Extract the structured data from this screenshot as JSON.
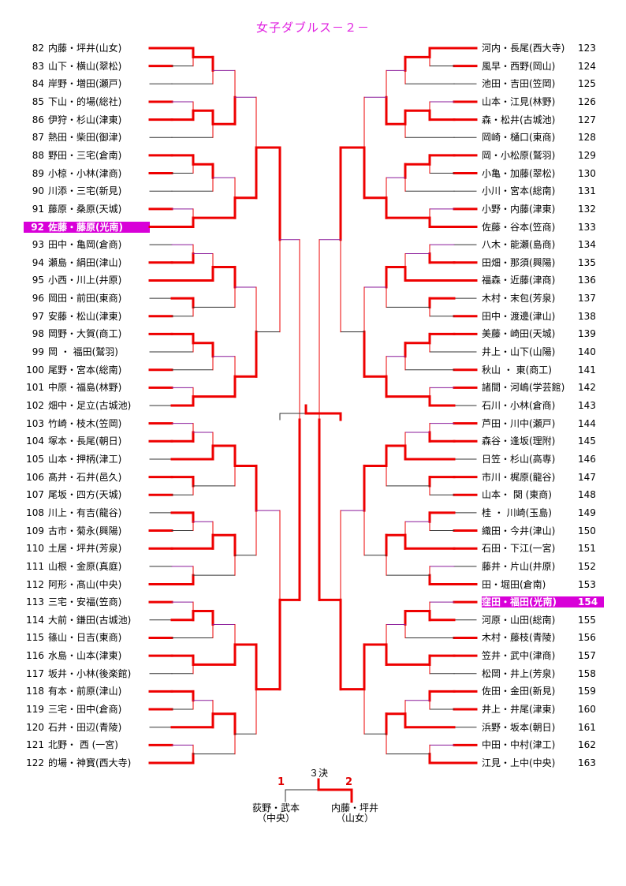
{
  "title": "女子ダブルス－２－",
  "colors": {
    "win": "#ee0000",
    "lose": "#333333",
    "lose_alt": "#8a1a9a",
    "highlight": "#d800d8",
    "title": "#e020e0"
  },
  "left_entries": [
    {
      "num": "82",
      "name": "内藤・坪井(山女)"
    },
    {
      "num": "83",
      "name": "山下・横山(翠松)"
    },
    {
      "num": "84",
      "name": "岸野・増田(瀬戸)"
    },
    {
      "num": "85",
      "name": "下山・的場(総社)"
    },
    {
      "num": "86",
      "name": "伊狩・杉山(津東)"
    },
    {
      "num": "87",
      "name": "熱田・柴田(御津)"
    },
    {
      "num": "88",
      "name": "野田・三宅(倉南)"
    },
    {
      "num": "89",
      "name": "小椋・小林(津商)"
    },
    {
      "num": "90",
      "name": "川添・三宅(新見)"
    },
    {
      "num": "91",
      "name": "藤原・桑原(天城)"
    },
    {
      "num": "92",
      "name": "佐藤・藤原(光南)",
      "hl": true
    },
    {
      "num": "93",
      "name": "田中・亀岡(倉商)"
    },
    {
      "num": "94",
      "name": "瀬島・絹田(津山)"
    },
    {
      "num": "95",
      "name": "小西・川上(井原)"
    },
    {
      "num": "96",
      "name": "岡田・前田(東商)"
    },
    {
      "num": "97",
      "name": "安藤・松山(津東)"
    },
    {
      "num": "98",
      "name": "岡野・大賀(商工)"
    },
    {
      "num": "99",
      "name": "岡 ・ 福田(鷲羽)"
    },
    {
      "num": "100",
      "name": "尾野・宮本(総南)"
    },
    {
      "num": "101",
      "name": "中原・福島(林野)"
    },
    {
      "num": "102",
      "name": "畑中・足立(古城池)"
    },
    {
      "num": "103",
      "name": "竹崎・枝木(笠岡)"
    },
    {
      "num": "104",
      "name": "塚本・長尾(朝日)"
    },
    {
      "num": "105",
      "name": "山本・押柄(津工)"
    },
    {
      "num": "106",
      "name": "髙井・石井(邑久)"
    },
    {
      "num": "107",
      "name": "尾坂・四方(天城)"
    },
    {
      "num": "108",
      "name": "川上・有吉(龍谷)"
    },
    {
      "num": "109",
      "name": "古市・菊永(興陽)"
    },
    {
      "num": "110",
      "name": "土居・坪井(芳泉)"
    },
    {
      "num": "111",
      "name": "山根・金原(真庭)"
    },
    {
      "num": "112",
      "name": "阿形・髙山(中央)"
    },
    {
      "num": "113",
      "name": "三宅・安福(笠商)"
    },
    {
      "num": "114",
      "name": "大前・鎌田(古城池)"
    },
    {
      "num": "115",
      "name": "篠山・日吉(東商)"
    },
    {
      "num": "116",
      "name": "水島・山本(津東)"
    },
    {
      "num": "117",
      "name": "坂井・小林(後楽館)"
    },
    {
      "num": "118",
      "name": "有本・前原(津山)"
    },
    {
      "num": "119",
      "name": "三宅・田中(倉商)"
    },
    {
      "num": "120",
      "name": "石井・田辺(青陵)"
    },
    {
      "num": "121",
      "name": "北野・ 西 (一宮)"
    },
    {
      "num": "122",
      "name": "的場・神寳(西大寺)"
    }
  ],
  "right_entries": [
    {
      "num": "123",
      "name": "河内・長尾(西大寺)"
    },
    {
      "num": "124",
      "name": "風早・西野(岡山)"
    },
    {
      "num": "125",
      "name": "池田・吉田(笠岡)"
    },
    {
      "num": "126",
      "name": "山本・江見(林野)"
    },
    {
      "num": "127",
      "name": "森・松井(古城池)"
    },
    {
      "num": "128",
      "name": "岡崎・樋口(東商)"
    },
    {
      "num": "129",
      "name": "岡・小松原(鷲羽)"
    },
    {
      "num": "130",
      "name": "小亀・加藤(翠松)"
    },
    {
      "num": "131",
      "name": "小川・宮本(総南)"
    },
    {
      "num": "132",
      "name": "小野・内藤(津東)"
    },
    {
      "num": "133",
      "name": "佐藤・谷本(笠商)"
    },
    {
      "num": "134",
      "name": "八木・能瀬(島商)"
    },
    {
      "num": "135",
      "name": "田畑・那須(興陽)"
    },
    {
      "num": "136",
      "name": "福森・近藤(津商)"
    },
    {
      "num": "137",
      "name": "木村・末包(芳泉)"
    },
    {
      "num": "138",
      "name": "田中・渡邊(津山)"
    },
    {
      "num": "139",
      "name": "美藤・崎田(天城)"
    },
    {
      "num": "140",
      "name": "井上・山下(山陽)"
    },
    {
      "num": "141",
      "name": "秋山 ・ 東(商工)"
    },
    {
      "num": "142",
      "name": "諸間・河嶋(学芸館)"
    },
    {
      "num": "143",
      "name": "石川・小林(倉商)"
    },
    {
      "num": "144",
      "name": "芦田・川中(瀬戸)"
    },
    {
      "num": "145",
      "name": "森谷・逢坂(理附)"
    },
    {
      "num": "146",
      "name": "日笠・杉山(高専)"
    },
    {
      "num": "147",
      "name": "市川・梶原(龍谷)"
    },
    {
      "num": "148",
      "name": "山本・ 関 (東商)"
    },
    {
      "num": "149",
      "name": "桂 ・ 川崎(玉島)"
    },
    {
      "num": "150",
      "name": "織田・今井(津山)"
    },
    {
      "num": "151",
      "name": "石田・下江(一宮)"
    },
    {
      "num": "152",
      "name": "藤井・片山(井原)"
    },
    {
      "num": "153",
      "name": "田・堀田(倉南)"
    },
    {
      "num": "154",
      "name": "窪田・福田(光南)",
      "hl": true
    },
    {
      "num": "155",
      "name": "河原・山田(総南)"
    },
    {
      "num": "156",
      "name": "木村・藤枝(青陵)"
    },
    {
      "num": "157",
      "name": "笠井・武中(津商)"
    },
    {
      "num": "158",
      "name": "松岡・井上(芳泉)"
    },
    {
      "num": "159",
      "name": "佐田・金田(新見)"
    },
    {
      "num": "160",
      "name": "井上・井尾(津東)"
    },
    {
      "num": "161",
      "name": "浜野・坂本(朝日)"
    },
    {
      "num": "162",
      "name": "中田・中村(津工)"
    },
    {
      "num": "163",
      "name": "江見・上中(中央)"
    }
  ],
  "third_place": {
    "label": "３決",
    "rank1": "1",
    "rank2": "2",
    "pair1_line1": "荻野・武本",
    "pair1_line2": "（中央）",
    "pair2_line1": "内藤・坪井",
    "pair2_line2": "（山女）"
  }
}
